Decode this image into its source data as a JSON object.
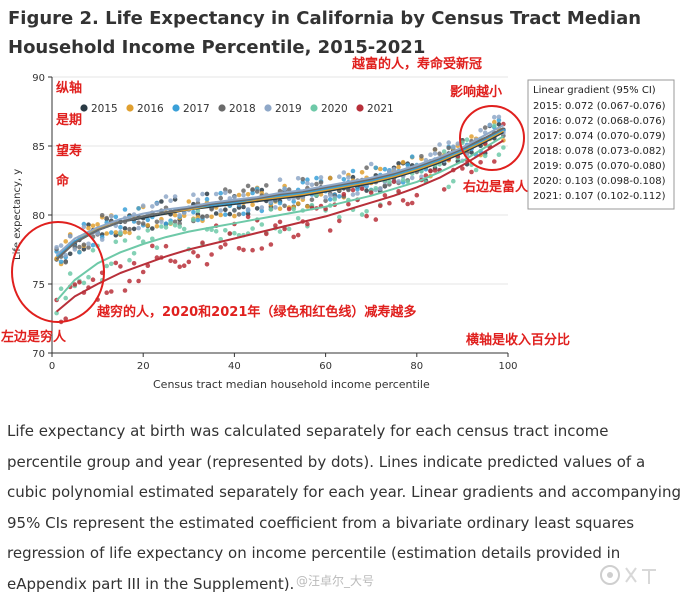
{
  "title": "Figure 2.  Life Expectancy in California by Census Tract Median Household Income Percentile, 2015-2021",
  "caption": "Life expectancy at birth was calculated separately for each census tract income percentile group and year (represented by dots). Lines indicate predicted values of a cubic polynomial estimated separately for each year. Linear gradients and accompanying 95% CIs represent the estimated coefficient from a bivariate ordinary least squares regression of life expectancy on income percentile (estimation details provided in eAppendix part III in the Supplement).",
  "watermark": "@汪卓尔_大号",
  "gradient_box": {
    "title": "Linear gradient (95% CI)",
    "rows": [
      "2015: 0.072 (0.067-0.076)",
      "2016: 0.072 (0.068-0.076)",
      "2017: 0.074 (0.070-0.079)",
      "2018: 0.078 (0.073-0.082)",
      "2019: 0.075 (0.070-0.080)",
      "2020: 0.103 (0.098-0.108)",
      "2021: 0.107 (0.102-0.112)"
    ]
  },
  "annotations": {
    "y_axis_note": [
      "纵轴",
      "是期",
      "望寿",
      "命"
    ],
    "rich_top": "越富的人，寿命受新冠",
    "rich_top2": "影响越小",
    "right_rich": "右边是富人",
    "left_poor": "左边是穷人",
    "poor_note": "越穷的人，2020和2021年（绿色和红色线）减寿越多",
    "x_axis_note": "横轴是收入百分比"
  },
  "colors": {
    "2015": "#2a3a44",
    "2016": "#e0a030",
    "2017": "#3aa0d8",
    "2018": "#6a6a6a",
    "2019": "#8fa8c8",
    "2020": "#6ec9a8",
    "2021": "#b8303a",
    "annotation": "#e0201e"
  },
  "chart_data": {
    "type": "scatter",
    "title": "",
    "xlabel": "Census tract median household income percentile",
    "ylabel": "Life expectancy, y",
    "xlim": [
      0,
      100
    ],
    "ylim": [
      70,
      90
    ],
    "xticks": [
      0,
      20,
      40,
      60,
      80,
      100
    ],
    "yticks": [
      70,
      75,
      80,
      85,
      90
    ],
    "legend_position": "top",
    "fit": "cubic polynomial line per year",
    "series": [
      {
        "name": "2015",
        "points": [
          [
            1,
            76.8
          ],
          [
            5,
            78.0
          ],
          [
            10,
            78.9
          ],
          [
            15,
            79.5
          ],
          [
            20,
            79.8
          ],
          [
            25,
            80.1
          ],
          [
            30,
            80.4
          ],
          [
            35,
            80.6
          ],
          [
            40,
            80.8
          ],
          [
            45,
            81.0
          ],
          [
            50,
            81.2
          ],
          [
            55,
            81.4
          ],
          [
            60,
            81.7
          ],
          [
            65,
            82.0
          ],
          [
            70,
            82.3
          ],
          [
            75,
            82.7
          ],
          [
            80,
            83.2
          ],
          [
            85,
            83.8
          ],
          [
            90,
            84.5
          ],
          [
            95,
            85.3
          ],
          [
            99,
            86.0
          ]
        ]
      },
      {
        "name": "2016",
        "points": [
          [
            1,
            76.9
          ],
          [
            5,
            78.1
          ],
          [
            10,
            79.0
          ],
          [
            15,
            79.5
          ],
          [
            20,
            79.9
          ],
          [
            25,
            80.2
          ],
          [
            30,
            80.4
          ],
          [
            35,
            80.7
          ],
          [
            40,
            80.9
          ],
          [
            45,
            81.1
          ],
          [
            50,
            81.3
          ],
          [
            55,
            81.5
          ],
          [
            60,
            81.8
          ],
          [
            65,
            82.1
          ],
          [
            70,
            82.4
          ],
          [
            75,
            82.8
          ],
          [
            80,
            83.3
          ],
          [
            85,
            83.9
          ],
          [
            90,
            84.6
          ],
          [
            95,
            85.4
          ],
          [
            99,
            86.1
          ]
        ]
      },
      {
        "name": "2017",
        "points": [
          [
            1,
            77.0
          ],
          [
            5,
            78.1
          ],
          [
            10,
            78.9
          ],
          [
            15,
            79.5
          ],
          [
            20,
            79.9
          ],
          [
            25,
            80.2
          ],
          [
            30,
            80.5
          ],
          [
            35,
            80.7
          ],
          [
            40,
            80.9
          ],
          [
            45,
            81.2
          ],
          [
            50,
            81.4
          ],
          [
            55,
            81.6
          ],
          [
            60,
            81.9
          ],
          [
            65,
            82.2
          ],
          [
            70,
            82.5
          ],
          [
            75,
            82.9
          ],
          [
            80,
            83.4
          ],
          [
            85,
            84.0
          ],
          [
            90,
            84.7
          ],
          [
            95,
            85.5
          ],
          [
            99,
            86.2
          ]
        ]
      },
      {
        "name": "2018",
        "points": [
          [
            1,
            76.8
          ],
          [
            5,
            78.0
          ],
          [
            10,
            78.9
          ],
          [
            15,
            79.5
          ],
          [
            20,
            79.9
          ],
          [
            25,
            80.2
          ],
          [
            30,
            80.5
          ],
          [
            35,
            80.8
          ],
          [
            40,
            81.0
          ],
          [
            45,
            81.2
          ],
          [
            50,
            81.5
          ],
          [
            55,
            81.7
          ],
          [
            60,
            82.0
          ],
          [
            65,
            82.3
          ],
          [
            70,
            82.6
          ],
          [
            75,
            83.0
          ],
          [
            80,
            83.5
          ],
          [
            85,
            84.1
          ],
          [
            90,
            84.8
          ],
          [
            95,
            85.6
          ],
          [
            99,
            86.3
          ]
        ]
      },
      {
        "name": "2019",
        "points": [
          [
            1,
            77.1
          ],
          [
            5,
            78.3
          ],
          [
            10,
            79.1
          ],
          [
            15,
            79.7
          ],
          [
            20,
            80.1
          ],
          [
            25,
            80.4
          ],
          [
            30,
            80.6
          ],
          [
            35,
            80.9
          ],
          [
            40,
            81.1
          ],
          [
            45,
            81.3
          ],
          [
            50,
            81.6
          ],
          [
            55,
            81.8
          ],
          [
            60,
            82.1
          ],
          [
            65,
            82.4
          ],
          [
            70,
            82.7
          ],
          [
            75,
            83.1
          ],
          [
            80,
            83.6
          ],
          [
            85,
            84.2
          ],
          [
            90,
            84.9
          ],
          [
            95,
            85.8
          ],
          [
            99,
            86.5
          ]
        ]
      },
      {
        "name": "2020",
        "points": [
          [
            1,
            73.8
          ],
          [
            5,
            75.3
          ],
          [
            10,
            76.5
          ],
          [
            15,
            77.3
          ],
          [
            20,
            77.9
          ],
          [
            25,
            78.4
          ],
          [
            30,
            78.8
          ],
          [
            35,
            79.1
          ],
          [
            40,
            79.4
          ],
          [
            45,
            79.7
          ],
          [
            50,
            80.0
          ],
          [
            55,
            80.3
          ],
          [
            60,
            80.6
          ],
          [
            65,
            81.0
          ],
          [
            70,
            81.4
          ],
          [
            75,
            81.9
          ],
          [
            80,
            82.4
          ],
          [
            85,
            83.1
          ],
          [
            90,
            83.9
          ],
          [
            95,
            84.9
          ],
          [
            99,
            85.7
          ]
        ]
      },
      {
        "name": "2021",
        "points": [
          [
            1,
            73.0
          ],
          [
            5,
            74.1
          ],
          [
            10,
            75.0
          ],
          [
            15,
            75.8
          ],
          [
            20,
            76.4
          ],
          [
            25,
            77.0
          ],
          [
            30,
            77.5
          ],
          [
            35,
            77.9
          ],
          [
            40,
            78.3
          ],
          [
            45,
            78.7
          ],
          [
            50,
            79.1
          ],
          [
            55,
            79.5
          ],
          [
            60,
            79.9
          ],
          [
            65,
            80.4
          ],
          [
            70,
            80.9
          ],
          [
            75,
            81.4
          ],
          [
            80,
            82.0
          ],
          [
            85,
            82.7
          ],
          [
            90,
            83.6
          ],
          [
            95,
            84.6
          ],
          [
            99,
            85.4
          ]
        ]
      }
    ]
  }
}
